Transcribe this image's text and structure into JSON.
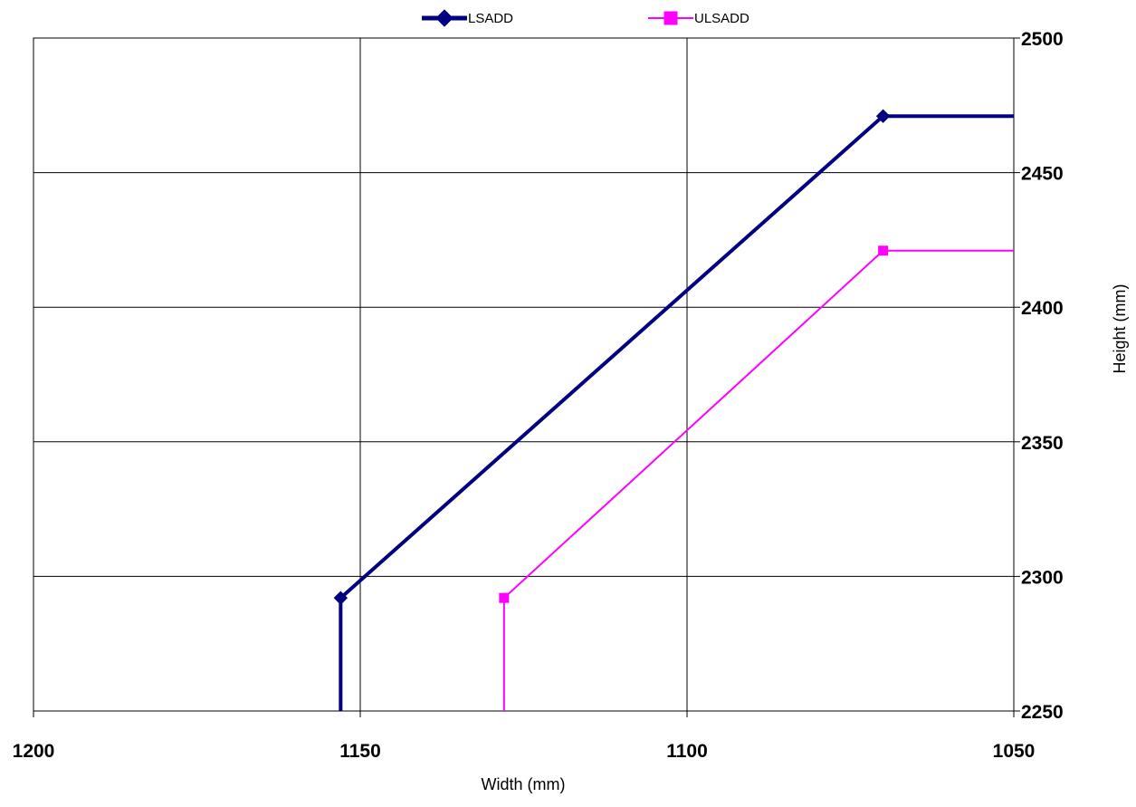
{
  "chart_data": {
    "type": "line",
    "xlabel": "Width (mm)",
    "ylabel": "Height (mm)",
    "xlim": [
      1200,
      1050
    ],
    "ylim": [
      2250,
      2500
    ],
    "x_reversed": true,
    "y_axis_side": "right",
    "x_ticks": [
      1200,
      1150,
      1100,
      1050
    ],
    "y_ticks": [
      2250,
      2300,
      2350,
      2400,
      2450,
      2500
    ],
    "grid": true,
    "legend_position": "top",
    "series": [
      {
        "name": "LSADD",
        "color": "#000080",
        "marker": "diamond",
        "line_style": "thick",
        "points": [
          [
            1153,
            2250
          ],
          [
            1153,
            2292
          ],
          [
            1070,
            2471
          ],
          [
            1050,
            2471
          ]
        ],
        "marker_points": [
          [
            1153,
            2292
          ],
          [
            1070,
            2471
          ]
        ]
      },
      {
        "name": "ULSADD",
        "color": "#ff00ff",
        "marker": "square",
        "line_style": "thin",
        "points": [
          [
            1128,
            2250
          ],
          [
            1128,
            2292
          ],
          [
            1070,
            2421
          ],
          [
            1050,
            2421
          ]
        ],
        "marker_points": [
          [
            1128,
            2292
          ],
          [
            1070,
            2421
          ]
        ]
      }
    ]
  }
}
